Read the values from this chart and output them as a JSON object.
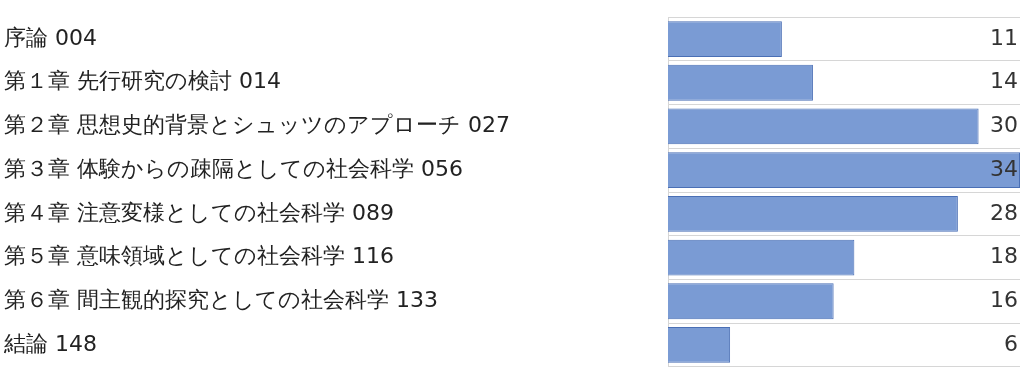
{
  "chart_data": {
    "type": "bar",
    "orientation": "horizontal",
    "categories": [
      "序論 004",
      "第１章 先行研究の検討 014",
      "第２章 思想史的背景とシュッツのアプローチ 027",
      "第３章 体験からの疎隔としての社会科学 056",
      "第４章 注意変様としての社会科学 089",
      "第５章 意味領域としての社会科学 116",
      "第６章 間主観的探究としての社会科学 133",
      "結論 148"
    ],
    "values": [
      11,
      14,
      30,
      34,
      28,
      18,
      16,
      6
    ],
    "color": "#7a9bd4",
    "xlim": [
      0,
      34
    ],
    "data_labels": true,
    "grid": "y",
    "tick_labels": "y"
  }
}
